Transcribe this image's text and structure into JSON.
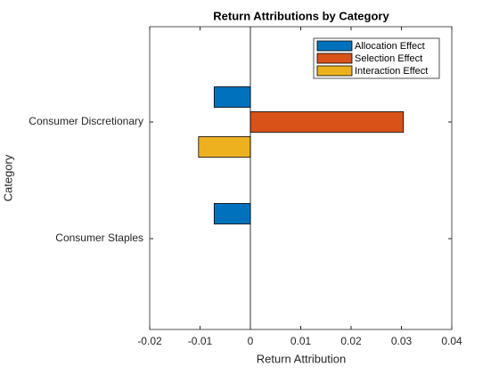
{
  "chart_data": {
    "type": "barh",
    "title": "Return Attributions by Category",
    "categories": [
      "Consumer Discretionary",
      "Consumer Staples"
    ],
    "series": [
      {
        "name": "Allocation Effect",
        "color": "#0072bd",
        "values": [
          -0.0072,
          -0.0072
        ]
      },
      {
        "name": "Selection Effect",
        "color": "#d95319",
        "values": [
          0.0304,
          0
        ]
      },
      {
        "name": "Interaction Effect",
        "color": "#edb120",
        "values": [
          -0.0103,
          0
        ]
      }
    ],
    "xlabel": "Return Attribution",
    "ylabel": "Category",
    "xlim": [
      -0.02,
      0.04
    ],
    "xticks": [
      -0.02,
      -0.01,
      0,
      0.01,
      0.02,
      0.03,
      0.04
    ],
    "legend": "top-right",
    "grid": false
  }
}
